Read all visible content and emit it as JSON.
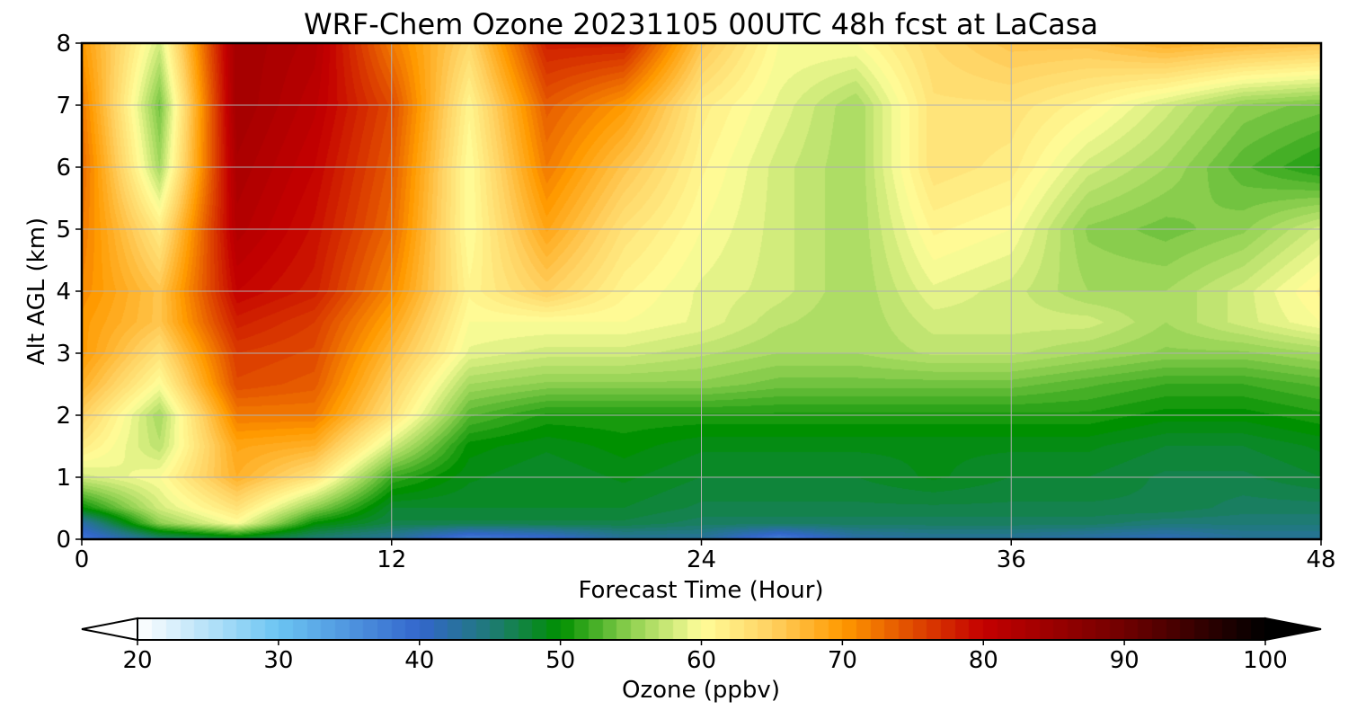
{
  "chart_data": {
    "type": "heatmap",
    "title": "WRF-Chem Ozone  20231105 00UTC 48h fcst at LaCasa",
    "xlabel": "Forecast Time (Hour)",
    "ylabel": "Alt AGL (km)",
    "xlim": [
      0,
      48
    ],
    "ylim": [
      0,
      8
    ],
    "x_ticks": [
      "0",
      "12",
      "24",
      "36",
      "48"
    ],
    "y_ticks": [
      "0",
      "1",
      "2",
      "3",
      "4",
      "5",
      "6",
      "7",
      "8"
    ],
    "grid": true,
    "x": [
      0,
      3,
      6,
      9,
      12,
      15,
      18,
      21,
      24,
      27,
      30,
      33,
      36,
      39,
      42,
      45,
      48
    ],
    "y": [
      0,
      0.25,
      0.5,
      1,
      1.5,
      2,
      2.5,
      3,
      3.5,
      4,
      5,
      6,
      7,
      8
    ],
    "z": [
      [
        38,
        45,
        48,
        45,
        43,
        37,
        39,
        43,
        43,
        37,
        42,
        43,
        43,
        42,
        41,
        43,
        43
      ],
      [
        42,
        55,
        60,
        50,
        47,
        47,
        47,
        47,
        46,
        46,
        46,
        46,
        46,
        46,
        45,
        45,
        45
      ],
      [
        50,
        58,
        63,
        55,
        48,
        48,
        48,
        48,
        47,
        47,
        47,
        47,
        47,
        47,
        47,
        46,
        46
      ],
      [
        58,
        60,
        68,
        63,
        52,
        49,
        48,
        49,
        48,
        48,
        48,
        49,
        48,
        48,
        47,
        47,
        48
      ],
      [
        62,
        57,
        69,
        68,
        58,
        50,
        49,
        50,
        49,
        49,
        49,
        49,
        49,
        49,
        48,
        48,
        49
      ],
      [
        65,
        56,
        72,
        72,
        63,
        53,
        51,
        51,
        51,
        51,
        51,
        51,
        51,
        51,
        50,
        50,
        51
      ],
      [
        68,
        60,
        75,
        74,
        65,
        56,
        55,
        55,
        55,
        54,
        54,
        54,
        54,
        53,
        52,
        52,
        53
      ],
      [
        70,
        63,
        76,
        75,
        67,
        59,
        58,
        58,
        57,
        56,
        56,
        57,
        57,
        56,
        55,
        55,
        56
      ],
      [
        70,
        66,
        78,
        76,
        69,
        60,
        60,
        60,
        59,
        57,
        56,
        58,
        58,
        58,
        56,
        58,
        60
      ],
      [
        71,
        66,
        80,
        78,
        71,
        61,
        65,
        61,
        59,
        58,
        56,
        59,
        58,
        56,
        56,
        58,
        61
      ],
      [
        72,
        62,
        82,
        79,
        73,
        60,
        69,
        63,
        60,
        58,
        56,
        61,
        60,
        55,
        54,
        55,
        58
      ],
      [
        73,
        56,
        83,
        80,
        74,
        60,
        72,
        66,
        61,
        58,
        56,
        63,
        62,
        58,
        56,
        53,
        51
      ],
      [
        72,
        54,
        84,
        81,
        75,
        61,
        74,
        70,
        62,
        59,
        56,
        63,
        63,
        61,
        58,
        55,
        54
      ],
      [
        70,
        58,
        84,
        82,
        72,
        64,
        78,
        78,
        66,
        60,
        60,
        64,
        66,
        66,
        68,
        67,
        66
      ]
    ],
    "colorbar": {
      "label": "Ozone  (ppbv)",
      "range": [
        20,
        100
      ],
      "ticks": [
        "20",
        "30",
        "40",
        "50",
        "60",
        "70",
        "80",
        "90",
        "100"
      ],
      "extend": "both",
      "colors": [
        {
          "v": 20,
          "c": "#ffffff"
        },
        {
          "v": 30,
          "c": "#6bc4f2"
        },
        {
          "v": 40,
          "c": "#3366cc"
        },
        {
          "v": 45,
          "c": "#1f7a78"
        },
        {
          "v": 50,
          "c": "#009000"
        },
        {
          "v": 55,
          "c": "#8fd050"
        },
        {
          "v": 60,
          "c": "#fffe9a"
        },
        {
          "v": 65,
          "c": "#ffd060"
        },
        {
          "v": 70,
          "c": "#ff9a00"
        },
        {
          "v": 75,
          "c": "#e04a00"
        },
        {
          "v": 80,
          "c": "#c40000"
        },
        {
          "v": 90,
          "c": "#700000"
        },
        {
          "v": 100,
          "c": "#000000"
        }
      ]
    }
  }
}
